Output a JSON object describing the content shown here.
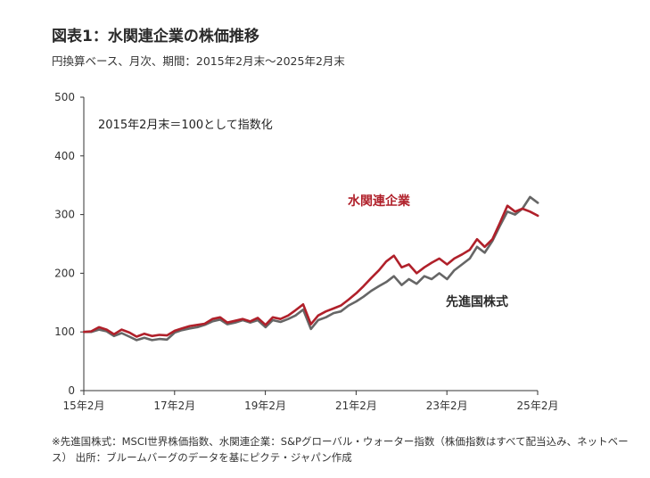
{
  "header": {
    "title": "図表1：水関連企業の株価推移",
    "subtitle": "円換算ベース、月次、期間：2015年2月末～2025年2月末"
  },
  "footer": {
    "note": "※先進国株式：MSCI世界株価指数、水関連企業：S&Pグローバル・ウォーター指数（株価指数はすべて配当込み、ネットベース） 出所：ブルームバーグのデータを基にピクテ・ジャパン作成"
  },
  "chart_data": {
    "type": "line",
    "annotation": "2015年2月末＝100として指数化",
    "ylim": [
      0,
      500
    ],
    "yticks": [
      0,
      100,
      200,
      300,
      400,
      500
    ],
    "xlim": [
      2015.1667,
      2025.1667
    ],
    "xticks": [
      {
        "x": 2015.1667,
        "label": "15年2月"
      },
      {
        "x": 2017.1667,
        "label": "17年2月"
      },
      {
        "x": 2019.1667,
        "label": "19年2月"
      },
      {
        "x": 2021.1667,
        "label": "21年2月"
      },
      {
        "x": 2023.1667,
        "label": "23年2月"
      },
      {
        "x": 2025.1667,
        "label": "25年2月"
      }
    ],
    "grid": false,
    "series": [
      {
        "name": "水関連企業",
        "color": "#b0202a",
        "points": [
          [
            2015.17,
            100
          ],
          [
            2015.33,
            101
          ],
          [
            2015.5,
            108
          ],
          [
            2015.67,
            104
          ],
          [
            2015.83,
            96
          ],
          [
            2016.0,
            104
          ],
          [
            2016.17,
            99
          ],
          [
            2016.33,
            92
          ],
          [
            2016.5,
            97
          ],
          [
            2016.67,
            93
          ],
          [
            2016.83,
            95
          ],
          [
            2017.0,
            94
          ],
          [
            2017.17,
            102
          ],
          [
            2017.33,
            106
          ],
          [
            2017.5,
            110
          ],
          [
            2017.67,
            112
          ],
          [
            2017.83,
            114
          ],
          [
            2018.0,
            122
          ],
          [
            2018.17,
            125
          ],
          [
            2018.33,
            116
          ],
          [
            2018.5,
            119
          ],
          [
            2018.67,
            122
          ],
          [
            2018.83,
            118
          ],
          [
            2019.0,
            124
          ],
          [
            2019.17,
            112
          ],
          [
            2019.33,
            125
          ],
          [
            2019.5,
            122
          ],
          [
            2019.67,
            128
          ],
          [
            2019.83,
            137
          ],
          [
            2020.0,
            147
          ],
          [
            2020.17,
            113
          ],
          [
            2020.33,
            128
          ],
          [
            2020.5,
            135
          ],
          [
            2020.67,
            140
          ],
          [
            2020.83,
            145
          ],
          [
            2021.0,
            155
          ],
          [
            2021.17,
            166
          ],
          [
            2021.33,
            178
          ],
          [
            2021.5,
            192
          ],
          [
            2021.67,
            205
          ],
          [
            2021.83,
            220
          ],
          [
            2022.0,
            230
          ],
          [
            2022.17,
            210
          ],
          [
            2022.33,
            215
          ],
          [
            2022.5,
            200
          ],
          [
            2022.67,
            210
          ],
          [
            2022.83,
            218
          ],
          [
            2023.0,
            225
          ],
          [
            2023.17,
            215
          ],
          [
            2023.33,
            225
          ],
          [
            2023.5,
            232
          ],
          [
            2023.67,
            240
          ],
          [
            2023.83,
            258
          ],
          [
            2024.0,
            245
          ],
          [
            2024.17,
            258
          ],
          [
            2024.33,
            285
          ],
          [
            2024.5,
            315
          ],
          [
            2024.67,
            305
          ],
          [
            2024.83,
            310
          ],
          [
            2025.0,
            305
          ],
          [
            2025.17,
            298
          ]
        ]
      },
      {
        "name": "先進国株式",
        "color": "#666666",
        "points": [
          [
            2015.17,
            100
          ],
          [
            2015.33,
            100
          ],
          [
            2015.5,
            104
          ],
          [
            2015.67,
            101
          ],
          [
            2015.83,
            93
          ],
          [
            2016.0,
            98
          ],
          [
            2016.17,
            92
          ],
          [
            2016.33,
            86
          ],
          [
            2016.5,
            90
          ],
          [
            2016.67,
            86
          ],
          [
            2016.83,
            88
          ],
          [
            2017.0,
            87
          ],
          [
            2017.17,
            99
          ],
          [
            2017.33,
            103
          ],
          [
            2017.5,
            106
          ],
          [
            2017.67,
            108
          ],
          [
            2017.83,
            112
          ],
          [
            2018.0,
            118
          ],
          [
            2018.17,
            121
          ],
          [
            2018.33,
            113
          ],
          [
            2018.5,
            116
          ],
          [
            2018.67,
            120
          ],
          [
            2018.83,
            116
          ],
          [
            2019.0,
            120
          ],
          [
            2019.17,
            108
          ],
          [
            2019.33,
            120
          ],
          [
            2019.5,
            117
          ],
          [
            2019.67,
            122
          ],
          [
            2019.83,
            128
          ],
          [
            2020.0,
            138
          ],
          [
            2020.17,
            105
          ],
          [
            2020.33,
            120
          ],
          [
            2020.5,
            125
          ],
          [
            2020.67,
            132
          ],
          [
            2020.83,
            135
          ],
          [
            2021.0,
            145
          ],
          [
            2021.17,
            152
          ],
          [
            2021.33,
            160
          ],
          [
            2021.5,
            170
          ],
          [
            2021.67,
            178
          ],
          [
            2021.83,
            185
          ],
          [
            2022.0,
            195
          ],
          [
            2022.17,
            180
          ],
          [
            2022.33,
            190
          ],
          [
            2022.5,
            182
          ],
          [
            2022.67,
            195
          ],
          [
            2022.83,
            190
          ],
          [
            2023.0,
            200
          ],
          [
            2023.17,
            190
          ],
          [
            2023.33,
            205
          ],
          [
            2023.5,
            215
          ],
          [
            2023.67,
            225
          ],
          [
            2023.83,
            245
          ],
          [
            2024.0,
            235
          ],
          [
            2024.17,
            255
          ],
          [
            2024.33,
            280
          ],
          [
            2024.5,
            305
          ],
          [
            2024.67,
            300
          ],
          [
            2024.83,
            310
          ],
          [
            2025.0,
            330
          ],
          [
            2025.17,
            320
          ]
        ]
      }
    ]
  }
}
